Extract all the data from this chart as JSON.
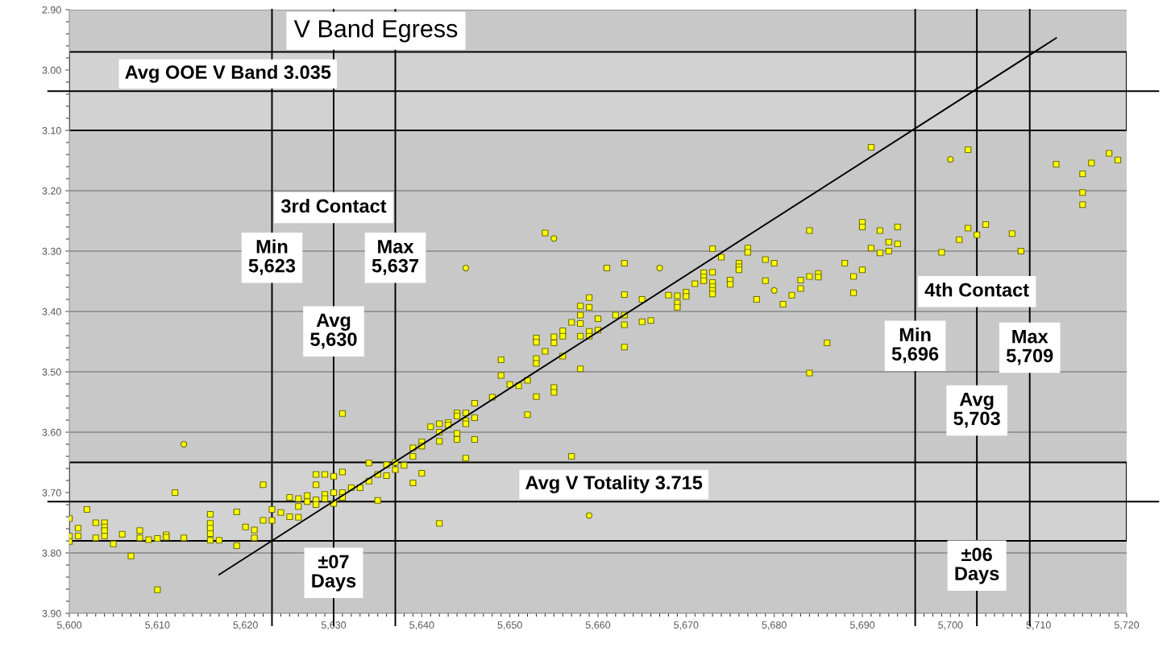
{
  "chart_data": {
    "type": "scatter",
    "title": "V Band Egress",
    "xlim": [
      5600,
      5720
    ],
    "ylim": [
      3.9,
      2.9
    ],
    "xticks": [
      {
        "value": 5600,
        "label": "5,600"
      },
      {
        "value": 5610,
        "label": "5,610"
      },
      {
        "value": 5620,
        "label": "5,620"
      },
      {
        "value": 5630,
        "label": "5,630"
      },
      {
        "value": 5640,
        "label": "5,640"
      },
      {
        "value": 5650,
        "label": "5,650"
      },
      {
        "value": 5660,
        "label": "5,660"
      },
      {
        "value": 5670,
        "label": "5,670"
      },
      {
        "value": 5680,
        "label": "5,680"
      },
      {
        "value": 5690,
        "label": "5,690"
      },
      {
        "value": 5700,
        "label": "5,700"
      },
      {
        "value": 5710,
        "label": "5,710"
      },
      {
        "value": 5720,
        "label": "5,720"
      }
    ],
    "yticks": [
      {
        "value": 2.9,
        "label": "2.90"
      },
      {
        "value": 3.0,
        "label": "3.00"
      },
      {
        "value": 3.1,
        "label": "3.10"
      },
      {
        "value": 3.2,
        "label": "3.20"
      },
      {
        "value": 3.3,
        "label": "3.30"
      },
      {
        "value": 3.4,
        "label": "3.40"
      },
      {
        "value": 3.5,
        "label": "3.50"
      },
      {
        "value": 3.6,
        "label": "3.60"
      },
      {
        "value": 3.7,
        "label": "3.70"
      },
      {
        "value": 3.8,
        "label": "3.80"
      },
      {
        "value": 3.9,
        "label": "3.90"
      }
    ],
    "grid": "y",
    "series": [
      {
        "marker": "square",
        "color": "#ffff00",
        "x": [
          5600,
          5600,
          5600,
          5601,
          5601,
          5602,
          5603,
          5603,
          5604,
          5604,
          5604,
          5604,
          5605,
          5606,
          5607,
          5608,
          5608,
          5609,
          5610,
          5610,
          5611,
          5611,
          5612,
          5613,
          5616,
          5616,
          5616,
          5616,
          5616,
          5617,
          5619,
          5619,
          5620,
          5621,
          5621,
          5622,
          5622,
          5623,
          5623,
          5624,
          5625,
          5625,
          5626,
          5626,
          5626,
          5627,
          5627,
          5628,
          5628,
          5628,
          5628,
          5629,
          5629,
          5629,
          5630,
          5630,
          5630,
          5631,
          5631,
          5631,
          5631,
          5632,
          5633,
          5634,
          5634,
          5635,
          5635,
          5636,
          5636,
          5637,
          5637,
          5638,
          5639,
          5639,
          5639,
          5640,
          5640,
          5640,
          5641,
          5642,
          5642,
          5642,
          5642,
          5643,
          5643,
          5644,
          5644,
          5644,
          5644,
          5645,
          5645,
          5645,
          5645,
          5646,
          5646,
          5646,
          5648,
          5649,
          5649,
          5650,
          5651,
          5652,
          5652,
          5653,
          5653,
          5653,
          5653,
          5653,
          5654,
          5654,
          5655,
          5655,
          5655,
          5655,
          5656,
          5656,
          5656,
          5657,
          5657,
          5658,
          5658,
          5658,
          5658,
          5658,
          5659,
          5659,
          5659,
          5659,
          5660,
          5660,
          5661,
          5662,
          5663,
          5663,
          5663,
          5663,
          5663,
          5665,
          5665,
          5666,
          5668,
          5669,
          5669,
          5669,
          5670,
          5670,
          5671,
          5672,
          5672,
          5672,
          5673,
          5673,
          5673,
          5673,
          5673,
          5673,
          5674,
          5675,
          5675,
          5676,
          5676,
          5676,
          5677,
          5677,
          5678,
          5679,
          5679,
          5680,
          5681,
          5682,
          5683,
          5683,
          5684,
          5684,
          5684,
          5685,
          5685,
          5686,
          5688,
          5689,
          5689,
          5690,
          5690,
          5690,
          5691,
          5691,
          5692,
          5692,
          5693,
          5693,
          5694,
          5694,
          5699,
          5701,
          5702,
          5702,
          5703,
          5704,
          5707,
          5708,
          5712,
          5715,
          5715,
          5715,
          5716,
          5718,
          5719
        ],
        "values": [
          3.743,
          3.772,
          3.781,
          3.759,
          3.772,
          3.728,
          3.75,
          3.775,
          3.75,
          3.757,
          3.763,
          3.772,
          3.785,
          3.769,
          3.805,
          3.763,
          3.775,
          3.778,
          3.776,
          3.861,
          3.77,
          3.774,
          3.7,
          3.775,
          3.736,
          3.751,
          3.759,
          3.768,
          3.779,
          3.779,
          3.732,
          3.788,
          3.757,
          3.762,
          3.775,
          3.687,
          3.746,
          3.728,
          3.746,
          3.733,
          3.708,
          3.74,
          3.71,
          3.723,
          3.741,
          3.705,
          3.715,
          3.67,
          3.687,
          3.712,
          3.72,
          3.67,
          3.703,
          3.71,
          3.673,
          3.7,
          3.718,
          3.569,
          3.666,
          3.7,
          3.708,
          3.692,
          3.692,
          3.651,
          3.681,
          3.67,
          3.713,
          3.654,
          3.672,
          3.65,
          3.662,
          3.655,
          3.626,
          3.64,
          3.684,
          3.616,
          3.623,
          3.668,
          3.591,
          3.586,
          3.6,
          3.615,
          3.751,
          3.584,
          3.588,
          3.568,
          3.573,
          3.602,
          3.612,
          3.568,
          3.581,
          3.586,
          3.643,
          3.552,
          3.576,
          3.612,
          3.542,
          3.48,
          3.506,
          3.521,
          3.523,
          3.514,
          3.571,
          3.444,
          3.451,
          3.478,
          3.486,
          3.541,
          3.466,
          3.27,
          3.442,
          3.452,
          3.526,
          3.534,
          3.432,
          3.441,
          3.474,
          3.418,
          3.64,
          3.391,
          3.406,
          3.42,
          3.441,
          3.495,
          3.377,
          3.393,
          3.433,
          3.441,
          3.412,
          3.431,
          3.328,
          3.406,
          3.32,
          3.372,
          3.406,
          3.422,
          3.459,
          3.38,
          3.417,
          3.415,
          3.373,
          3.374,
          3.386,
          3.393,
          3.368,
          3.375,
          3.354,
          3.336,
          3.343,
          3.349,
          3.296,
          3.335,
          3.352,
          3.359,
          3.365,
          3.371,
          3.31,
          3.348,
          3.355,
          3.32,
          3.326,
          3.331,
          3.295,
          3.302,
          3.38,
          3.314,
          3.349,
          3.32,
          3.388,
          3.373,
          3.348,
          3.362,
          3.266,
          3.342,
          3.502,
          3.337,
          3.343,
          3.452,
          3.32,
          3.342,
          3.369,
          3.252,
          3.26,
          3.331,
          3.128,
          3.295,
          3.266,
          3.303,
          3.285,
          3.3,
          3.26,
          3.288,
          3.302,
          3.281,
          3.132,
          3.262,
          3.273,
          3.256,
          3.271,
          3.3,
          3.156,
          3.172,
          3.203,
          3.223,
          3.154,
          3.138,
          3.149
        ]
      },
      {
        "marker": "circle",
        "color": "#ffff00",
        "x": [
          5613,
          5645,
          5655,
          5659,
          5667,
          5680,
          5700
        ],
        "values": [
          3.62,
          3.328,
          3.279,
          3.738,
          3.328,
          3.365,
          3.148
        ]
      },
      {
        "type": "line",
        "color": "#000000",
        "x": [
          5617,
          5712
        ],
        "values": [
          3.836,
          2.947
        ]
      }
    ],
    "ref_lines": [
      {
        "axis": "y",
        "value": 3.035
      },
      {
        "axis": "y",
        "value": 3.715
      },
      {
        "axis": "x",
        "value": 5623
      },
      {
        "axis": "x",
        "value": 5630
      },
      {
        "axis": "x",
        "value": 5637
      },
      {
        "axis": "x",
        "value": 5696
      },
      {
        "axis": "x",
        "value": 5703
      },
      {
        "axis": "x",
        "value": 5709
      }
    ],
    "bands": [
      {
        "axis": "y",
        "from": 2.97,
        "to": 3.1,
        "label": "Avg OOE V Band 3.035",
        "color": "#d2d2d2"
      },
      {
        "axis": "y",
        "from": 3.65,
        "to": 3.78,
        "label": "Avg V Totality 3.715",
        "color": "#d2d2d2"
      }
    ],
    "annotations": [
      {
        "text": "3rd Contact",
        "x": 5630,
        "y": 3.228
      },
      {
        "text": "Min\n5,623",
        "x": 5623,
        "y": 3.311
      },
      {
        "text": "Max\n5,637",
        "x": 5637,
        "y": 3.311
      },
      {
        "text": "Avg\n5,630",
        "x": 5630,
        "y": 3.433
      },
      {
        "text": "±07\nDays",
        "x": 5630,
        "y": 3.833
      },
      {
        "text": "4th Contact",
        "x": 5703,
        "y": 3.367
      },
      {
        "text": "Min\n5,696",
        "x": 5696,
        "y": 3.457
      },
      {
        "text": "Max\n5,709",
        "x": 5709,
        "y": 3.46
      },
      {
        "text": "Avg\n5,703",
        "x": 5703,
        "y": 3.564
      },
      {
        "text": "±06\nDays",
        "x": 5703,
        "y": 3.821
      }
    ]
  }
}
